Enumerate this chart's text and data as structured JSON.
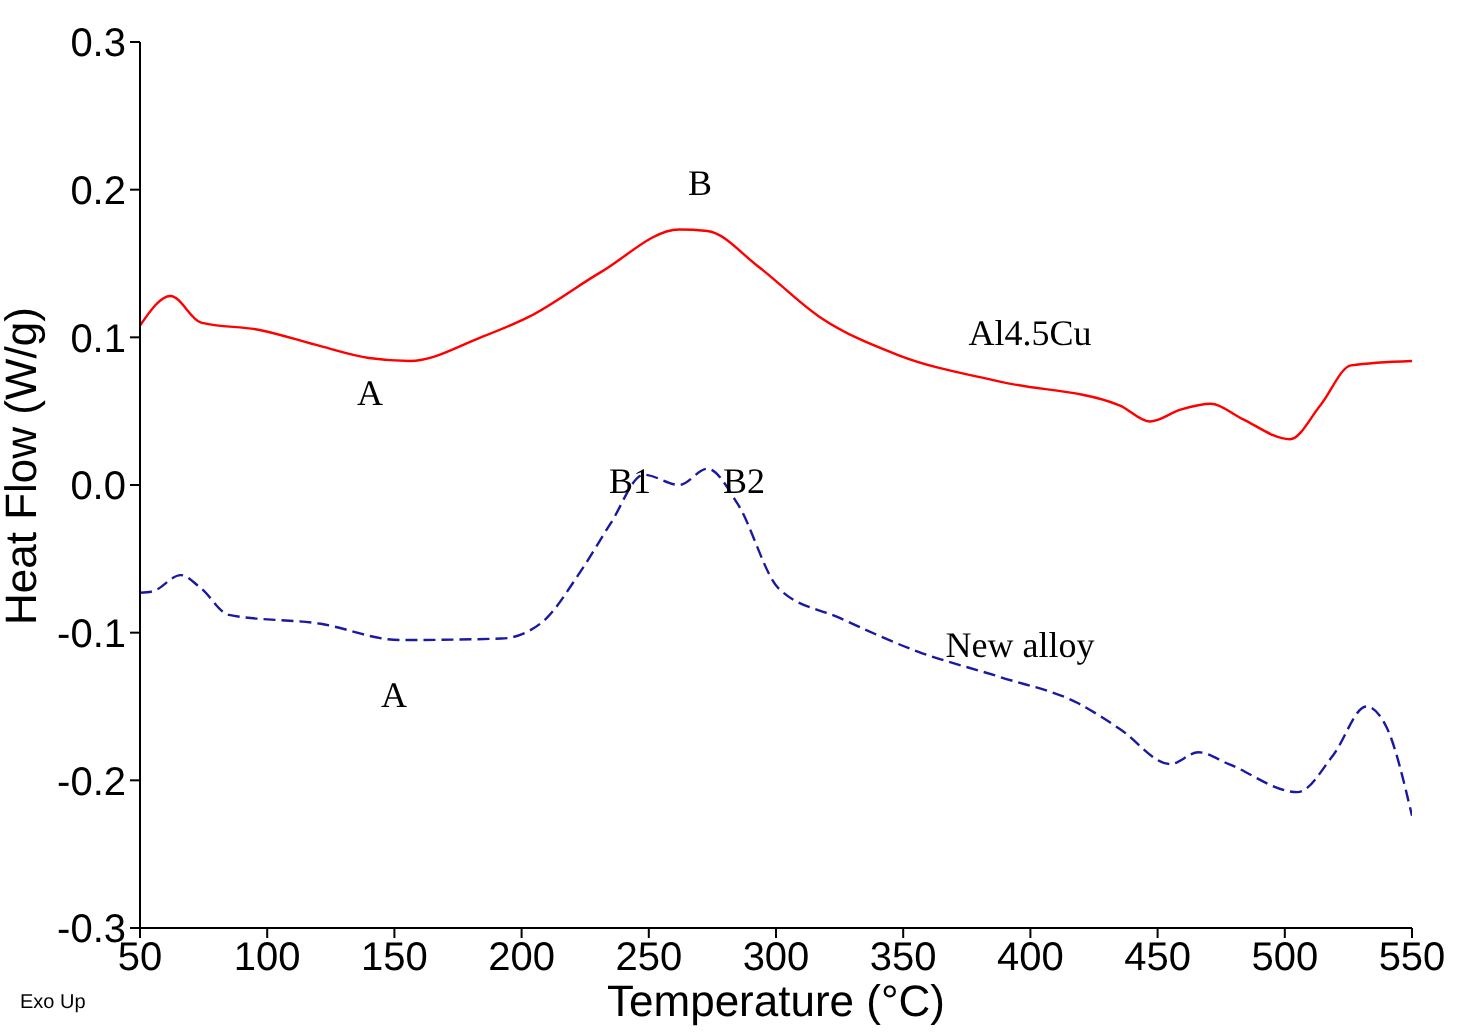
{
  "chart_data": {
    "type": "line",
    "xlabel": "Temperature (°C)",
    "ylabel": "Heat Flow (W/g)",
    "xlim": [
      50,
      550
    ],
    "xticks": [
      50,
      100,
      150,
      200,
      250,
      300,
      350,
      400,
      450,
      500,
      550
    ],
    "ylim": [
      -0.3,
      0.3
    ],
    "yticks": [
      -0.3,
      -0.2,
      -0.1,
      {
        "value": 0,
        "label": "0.0"
      },
      0.1,
      0.2,
      0.3
    ],
    "grid": false,
    "legend": false,
    "marker": "none",
    "series": [
      {
        "color": "#ff0000",
        "line_style": "solid",
        "x": [
          50,
          62,
          74,
          97,
          121,
          140,
          156,
          184,
          203,
          231,
          262,
          273,
          293,
          317,
          348,
          388,
          435,
          447,
          459,
          471,
          483,
          502,
          514,
          526,
          550
        ],
        "values": [
          0.108,
          0.128,
          0.11,
          0.105,
          0.094,
          0.086,
          0.084,
          0.1,
          0.114,
          0.144,
          0.173,
          0.172,
          0.148,
          0.114,
          0.088,
          0.07,
          0.054,
          0.043,
          0.051,
          0.055,
          0.045,
          0.031,
          0.054,
          0.081,
          0.084
        ]
      },
      {
        "color": "#1a1aa0",
        "line_style": "dashed",
        "x": [
          50,
          55,
          66,
          74,
          85,
          121,
          152,
          192,
          208,
          223,
          235,
          248,
          262,
          273,
          285,
          301,
          325,
          356,
          388,
          419,
          435,
          455,
          466,
          478,
          505,
          519,
          532,
          540,
          550
        ],
        "values": [
          -0.073,
          -0.072,
          -0.061,
          -0.07,
          -0.088,
          -0.094,
          -0.105,
          -0.104,
          -0.093,
          -0.059,
          -0.026,
          0.007,
          0,
          0.011,
          -0.013,
          -0.07,
          -0.09,
          -0.113,
          -0.13,
          -0.148,
          -0.165,
          -0.189,
          -0.181,
          -0.189,
          -0.208,
          -0.183,
          -0.15,
          -0.164,
          -0.224
        ]
      }
    ],
    "annotations": [
      "A",
      "B",
      "Al4.5Cu",
      "B1",
      "B2",
      "A",
      "New alloy",
      "Exo Up"
    ]
  }
}
